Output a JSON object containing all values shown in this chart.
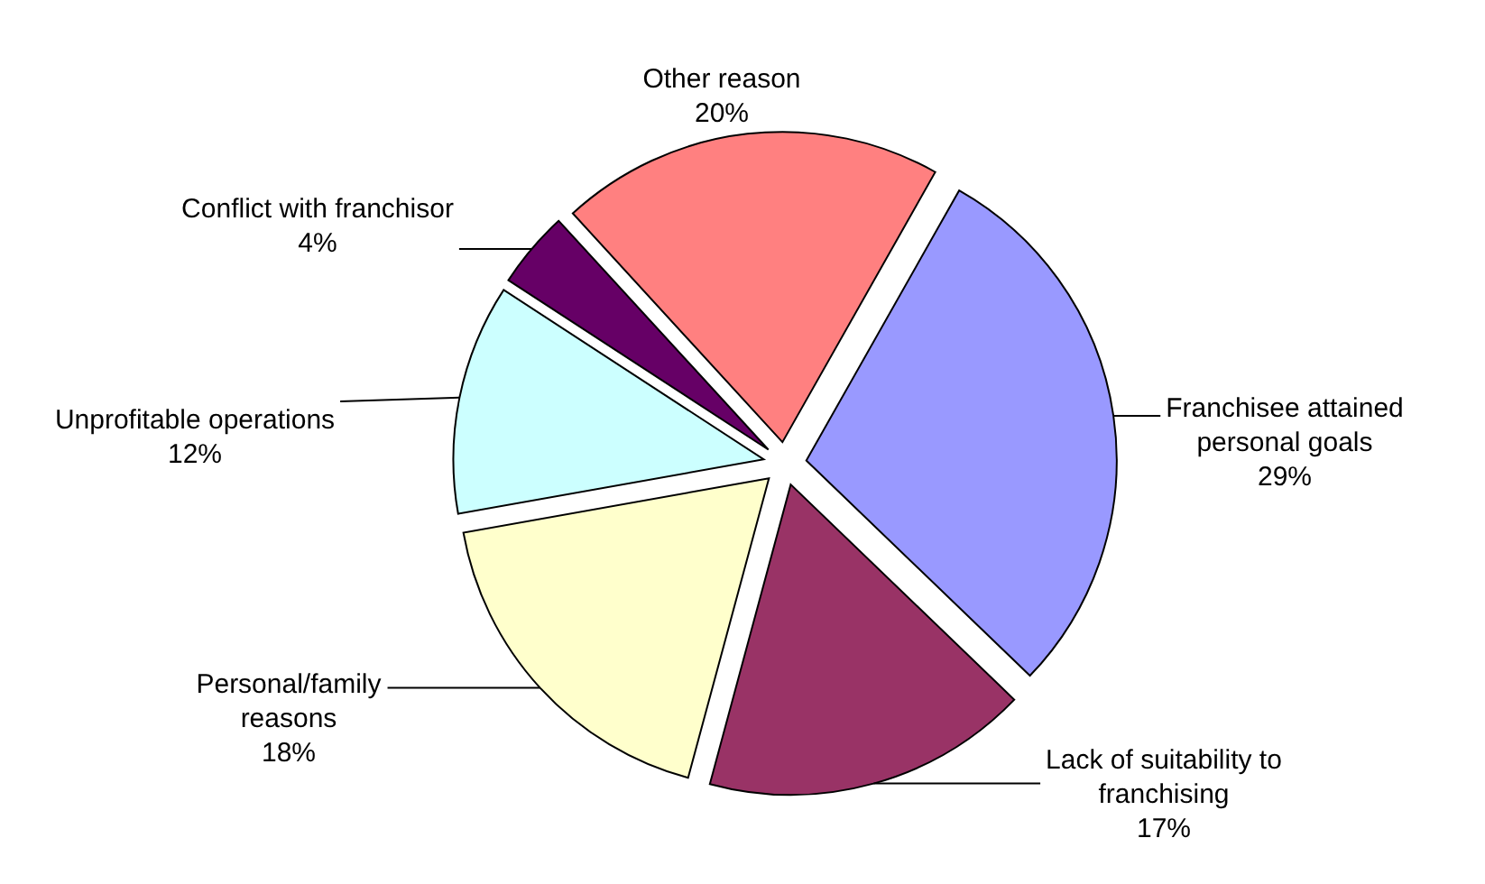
{
  "chart_data": {
    "type": "pie",
    "categories": [
      "Franchisee attained personal goals",
      "Lack of suitability to franchising",
      "Personal/family reasons",
      "Unprofitable operations",
      "Conflict with franchisor",
      "Other reason"
    ],
    "values": [
      29,
      17,
      18,
      12,
      4,
      20
    ],
    "colors": [
      "#9999ff",
      "#993366",
      "#ffffcc",
      "#ccffff",
      "#660066",
      "#ff8080"
    ],
    "value_labels": [
      "29%",
      "17%",
      "18%",
      "12%",
      "4%",
      "20%"
    ]
  }
}
